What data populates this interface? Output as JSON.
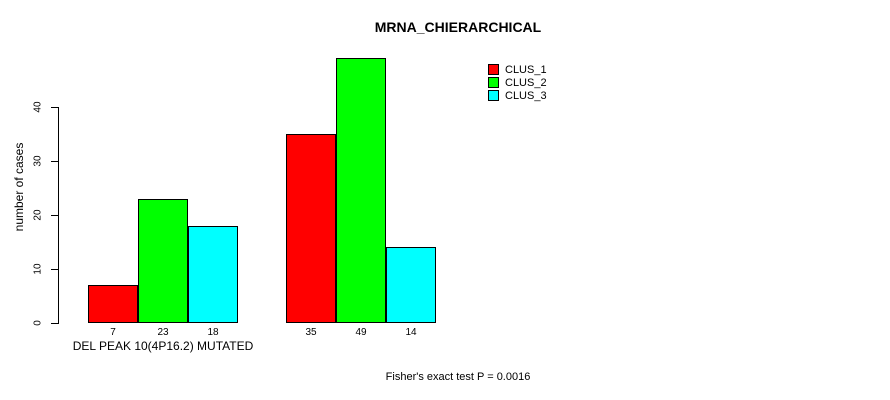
{
  "chart_title": "MRNA_CHIERARCHICAL",
  "y_axis_label": "number of cases",
  "group_label": "DEL PEAK 10(4P16.2) MUTATED",
  "footer_annotation": "Fisher's exact test P = 0.0016",
  "colors": {
    "clus_1": "#ff0000",
    "clus_2": "#00ff00",
    "clus_3": "#00ffff",
    "axis": "#000000",
    "background": "#ffffff"
  },
  "chart_data": {
    "type": "bar",
    "title": "MRNA_CHIERARCHICAL",
    "xlabel": "",
    "ylabel": "number of cases",
    "categories": [
      "DEL PEAK 10(4P16.2) MUTATED",
      ""
    ],
    "series": [
      {
        "name": "CLUS_1",
        "color": "#ff0000",
        "values": [
          7,
          35
        ]
      },
      {
        "name": "CLUS_2",
        "color": "#00ff00",
        "values": [
          23,
          49
        ]
      },
      {
        "name": "CLUS_3",
        "color": "#00ffff",
        "values": [
          18,
          14
        ]
      }
    ],
    "bar_value_labels": [
      [
        7,
        23,
        18
      ],
      [
        35,
        49,
        14
      ]
    ],
    "yticks": [
      0,
      10,
      20,
      30,
      40
    ],
    "ylim": [
      0,
      49
    ],
    "grid": false,
    "legend": [
      "CLUS_1",
      "CLUS_2",
      "CLUS_3"
    ],
    "legend_position": "top-right",
    "annotation": "Fisher's exact test P = 0.0016"
  }
}
